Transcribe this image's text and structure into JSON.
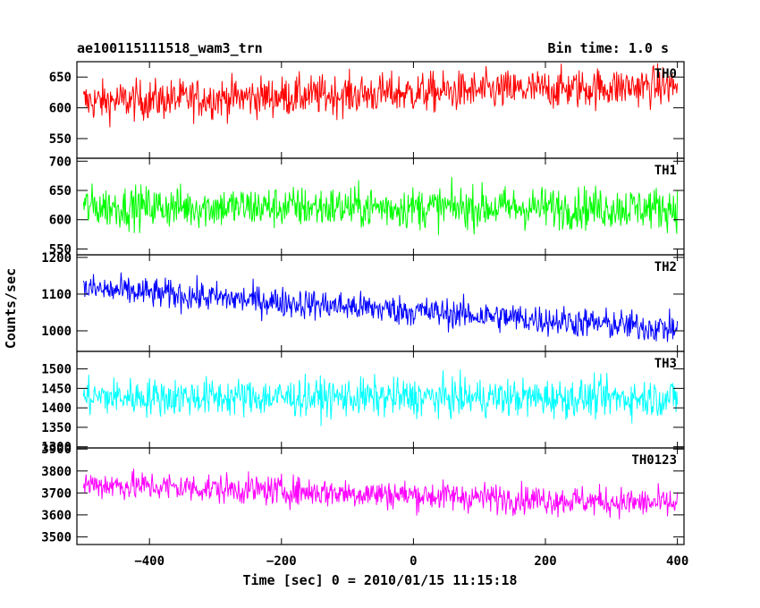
{
  "chart_data": {
    "type": "line",
    "title": "ae100115111518_wam3_trn",
    "subtitle": "Bin time: 1.0 s",
    "xlabel": "Time [sec] 0 = 2010/01/15 11:15:18",
    "ylabel": "Counts/sec",
    "xlim": [
      -510,
      410
    ],
    "x_start": -500,
    "x_end": 400,
    "x_step": 1,
    "x_ticks": [
      -400,
      -200,
      0,
      200,
      400
    ],
    "x_tick_labels": [
      "−400",
      "−200",
      "0",
      "200",
      "400"
    ],
    "grid": false,
    "panels": [
      {
        "name": "TH0",
        "color": "#ff0000",
        "ylim": [
          518,
          675
        ],
        "y_ticks": [
          550,
          600,
          650
        ],
        "y_tick_labels": [
          "550",
          "600",
          "650"
        ],
        "trend_start": 610,
        "trend_end": 636,
        "noise": 30
      },
      {
        "name": "TH1",
        "color": "#00ff00",
        "ylim": [
          540,
          705
        ],
        "y_ticks": [
          550,
          600,
          650,
          700
        ],
        "y_tick_labels": [
          "550",
          "600",
          "650",
          "700"
        ],
        "trend_start": 622,
        "trend_end": 620,
        "noise": 33
      },
      {
        "name": "TH2",
        "color": "#0000ff",
        "ylim": [
          944,
          1207
        ],
        "y_ticks": [
          1000,
          1100,
          1200
        ],
        "y_tick_labels": [
          "1000",
          "1100",
          "1200"
        ],
        "trend_start": 1115,
        "trend_end": 1005,
        "noise": 38
      },
      {
        "name": "TH3",
        "color": "#00ffff",
        "ylim": [
          1297,
          1545
        ],
        "y_ticks": [
          1300,
          1350,
          1400,
          1450,
          1500
        ],
        "y_tick_labels": [
          "1300",
          "1350",
          "1400",
          "1450",
          "1500"
        ],
        "trend_start": 1428,
        "trend_end": 1425,
        "noise": 45
      },
      {
        "name": "TH0123",
        "color": "#ff00ff",
        "ylim": [
          3465,
          3905
        ],
        "y_ticks": [
          3500,
          3600,
          3700,
          3800,
          3900
        ],
        "y_tick_labels": [
          "3500",
          "3600",
          "3700",
          "3800",
          "3900"
        ],
        "trend_start": 3740,
        "trend_end": 3650,
        "noise": 62
      }
    ]
  }
}
